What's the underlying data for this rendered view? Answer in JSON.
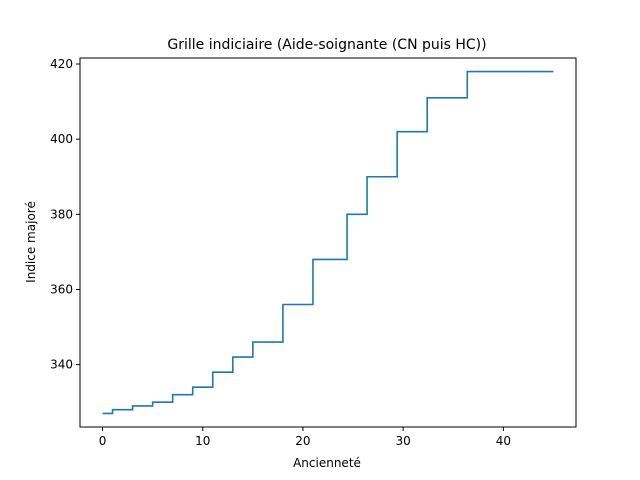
{
  "chart_data": {
    "type": "line",
    "drawstyle": "steps-post",
    "title": "Grille indiciaire (Aide-soignante (CN puis HC))",
    "xlabel": "Ancienneté",
    "ylabel": "Indice majoré",
    "xlim": [
      -2.25,
      47.25
    ],
    "ylim": [
      323.4,
      421.6
    ],
    "xticks": [
      0,
      10,
      20,
      30,
      40
    ],
    "yticks": [
      340,
      360,
      380,
      400,
      420
    ],
    "xtick_labels": [
      "0",
      "10",
      "20",
      "30",
      "40"
    ],
    "ytick_labels": [
      "340",
      "360",
      "380",
      "400",
      "420"
    ],
    "grid": false,
    "legend": "none",
    "series": [
      {
        "color": "#1f77b4",
        "x": [
          0,
          1,
          3,
          5,
          7,
          9,
          11,
          13,
          15,
          18,
          21,
          24.4,
          26.4,
          29.4,
          32.4,
          36.4,
          45
        ],
        "y": [
          327,
          328,
          329,
          330,
          332,
          334,
          338,
          342,
          346,
          356,
          368,
          380,
          390,
          402,
          411,
          418,
          418
        ]
      }
    ]
  }
}
